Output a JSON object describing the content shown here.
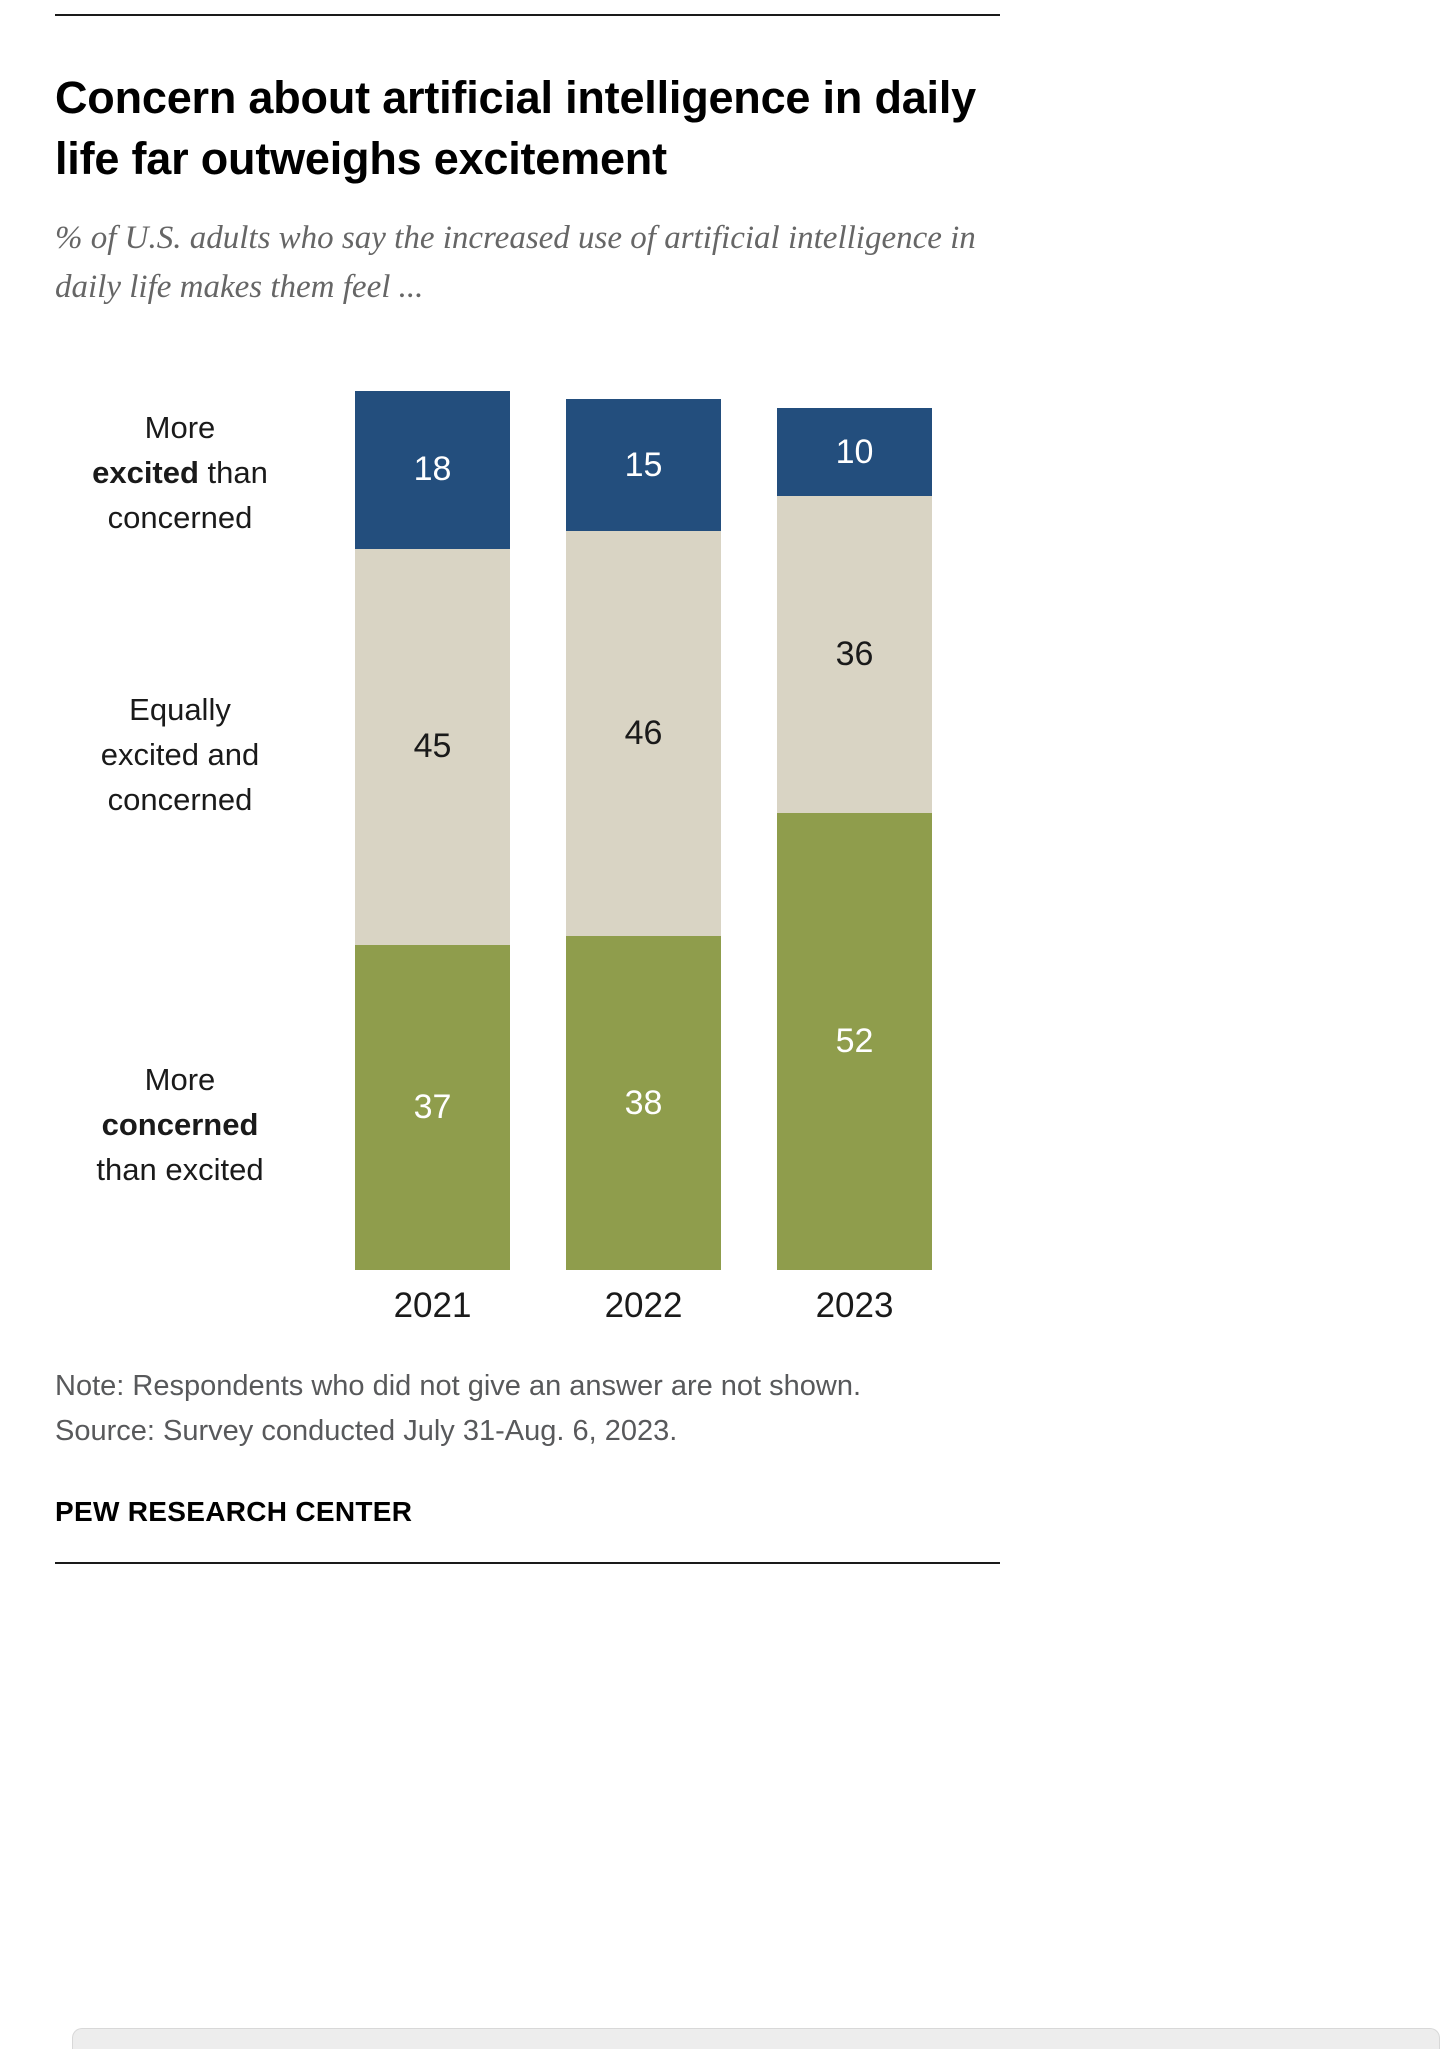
{
  "header": {
    "title": "Concern about artificial intelligence in daily life far outweighs excitement",
    "subtitle": "% of U.S. adults who say the increased use of artificial intelligence in daily life makes them feel ..."
  },
  "chart_data": {
    "type": "bar",
    "stacked": true,
    "orientation": "vertical",
    "categories": [
      "2021",
      "2022",
      "2023"
    ],
    "series": [
      {
        "name": "More excited than concerned",
        "values": [
          18,
          15,
          10
        ],
        "color": "#234e7d",
        "text_color": "#ffffff"
      },
      {
        "name": "Equally excited and concerned",
        "values": [
          45,
          46,
          36
        ],
        "color": "#d9d4c4",
        "text_color": "#1a1a1a"
      },
      {
        "name": "More concerned than excited",
        "values": [
          37,
          38,
          52
        ],
        "color": "#8f9d4c",
        "text_color": "#ffffff"
      }
    ],
    "unit": "%",
    "value_labels": true,
    "legend_position": "left-of-bars",
    "grid": false,
    "ylim": [
      0,
      100
    ]
  },
  "side_labels": [
    {
      "segment": "More excited than concerned",
      "lines": [
        [
          {
            "t": "More"
          }
        ],
        [
          {
            "t": "excited",
            "b": true
          },
          {
            "t": " than"
          }
        ],
        [
          {
            "t": "concerned"
          }
        ]
      ]
    },
    {
      "segment": "Equally excited and concerned",
      "lines": [
        [
          {
            "t": "Equally"
          }
        ],
        [
          {
            "t": "excited and"
          }
        ],
        [
          {
            "t": "concerned"
          }
        ]
      ]
    },
    {
      "segment": "More concerned than excited",
      "lines": [
        [
          {
            "t": "More"
          }
        ],
        [
          {
            "t": "concerned",
            "b": true
          }
        ],
        [
          {
            "t": "than excited"
          }
        ]
      ]
    }
  ],
  "footer": {
    "note": "Note: Respondents who did not give an answer are not shown.",
    "source": "Source: Survey conducted July 31-Aug. 6, 2023.",
    "brand": "PEW RESEARCH CENTER"
  }
}
